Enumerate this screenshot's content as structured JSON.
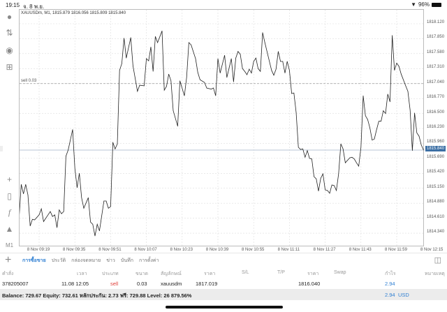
{
  "status": {
    "time": "19:15",
    "date": "จ. 8 พ.ย.",
    "battery": "96%"
  },
  "sidebar": {
    "icons": [
      "account-icon",
      "trade-arrows-icon",
      "chat-icon",
      "new-document-icon",
      "crosshair-icon",
      "candlestick-icon",
      "indicators-icon",
      "objects-icon"
    ],
    "timeframe": "M1"
  },
  "chart_data": {
    "type": "line",
    "symbol_info": "XAUUSDm, M1, 1815.879 1816.056 1815.809 1815.840",
    "y_ticks": [
      "1818.120",
      "1817.850",
      "1817.580",
      "1817.310",
      "1817.040",
      "1816.770",
      "1816.500",
      "1816.230",
      "1815.960",
      "1815.690",
      "1815.420",
      "1815.150",
      "1814.880",
      "1814.610",
      "1814.340"
    ],
    "x_ticks": [
      "8 Nov 09:19",
      "8 Nov 09:35",
      "8 Nov 09:51",
      "8 Nov 10:07",
      "8 Nov 10:23",
      "8 Nov 10:39",
      "8 Nov 10:55",
      "8 Nov 11:11",
      "8 Nov 11:27",
      "8 Nov 11:43",
      "8 Nov 11:59",
      "8 Nov 12:15"
    ],
    "current_price": "1815.840",
    "order_line": {
      "label": "sell 0.03",
      "price": 1817.04
    },
    "grid": true,
    "line_color": "#222222",
    "points": [
      [
        "09:10",
        1814.59
      ],
      [
        "09:11",
        1815.22
      ],
      [
        "09:12",
        1815.05
      ],
      [
        "09:13",
        1815.22
      ],
      [
        "09:14",
        1815.03
      ],
      [
        "09:15",
        1814.47
      ],
      [
        "09:16",
        1814.59
      ],
      [
        "09:17",
        1814.58
      ],
      [
        "09:19",
        1814.67
      ],
      [
        "09:20",
        1814.78
      ],
      [
        "09:21",
        1814.55
      ],
      [
        "09:23",
        1814.67
      ],
      [
        "09:24",
        1814.73
      ],
      [
        "09:25",
        1814.64
      ],
      [
        "09:26",
        1814.67
      ],
      [
        "09:27",
        1814.44
      ],
      [
        "09:28",
        1814.76
      ],
      [
        "09:29",
        1814.69
      ],
      [
        "09:30",
        1814.73
      ],
      [
        "09:31",
        1815.73
      ],
      [
        "09:32",
        1815.84
      ],
      [
        "09:34",
        1816.21
      ],
      [
        "09:35",
        1815.51
      ],
      [
        "09:36",
        1815.16
      ],
      [
        "09:37",
        1815.42
      ],
      [
        "09:38",
        1814.98
      ],
      [
        "09:39",
        1814.79
      ],
      [
        "09:41",
        1814.98
      ],
      [
        "09:42",
        1814.54
      ],
      [
        "09:43",
        1814.5
      ],
      [
        "09:44",
        1814.29
      ],
      [
        "09:45",
        1814.5
      ],
      [
        "09:46",
        1814.38
      ],
      [
        "09:48",
        1814.92
      ],
      [
        "09:49",
        1814.92
      ],
      [
        "09:50",
        1814.79
      ],
      [
        "09:51",
        1814.82
      ],
      [
        "09:52",
        1815.98
      ],
      [
        "09:53",
        1815.86
      ],
      [
        "09:54",
        1815.95
      ],
      [
        "09:55",
        1817.28
      ],
      [
        "09:56",
        1817.4
      ],
      [
        "09:57",
        1817.86
      ],
      [
        "09:58",
        1817.5
      ],
      [
        "10:00",
        1817.87
      ],
      [
        "10:01",
        1817.36
      ],
      [
        "10:03",
        1816.9
      ],
      [
        "10:04",
        1817.01
      ],
      [
        "10:06",
        1817.0
      ],
      [
        "10:07",
        1817.49
      ],
      [
        "10:08",
        1817.45
      ],
      [
        "10:09",
        1817.7
      ],
      [
        "10:10",
        1817.26
      ],
      [
        "10:11",
        1817.89
      ],
      [
        "10:12",
        1817.78
      ],
      [
        "10:14",
        1817.99
      ],
      [
        "10:15",
        1816.92
      ],
      [
        "10:16",
        1816.99
      ],
      [
        "10:17",
        1817.21
      ],
      [
        "10:18",
        1817.09
      ],
      [
        "10:19",
        1816.55
      ],
      [
        "10:21",
        1816.27
      ],
      [
        "10:22",
        1817.09
      ],
      [
        "10:24",
        1816.82
      ],
      [
        "10:25",
        1817.15
      ],
      [
        "10:26",
        1817.78
      ],
      [
        "10:27",
        1817.74
      ],
      [
        "10:29",
        1817.49
      ],
      [
        "10:30",
        1817.24
      ],
      [
        "10:31",
        1817.11
      ],
      [
        "10:33",
        1817.06
      ],
      [
        "10:34",
        1816.96
      ],
      [
        "10:36",
        1816.94
      ],
      [
        "10:37",
        1816.96
      ],
      [
        "10:38",
        1816.82
      ],
      [
        "10:39",
        1817.49
      ],
      [
        "10:40",
        1817.23
      ],
      [
        "10:42",
        1817.55
      ],
      [
        "10:43",
        1817.15
      ],
      [
        "10:45",
        1817.49
      ],
      [
        "10:46",
        1817.07
      ],
      [
        "10:47",
        1817.5
      ],
      [
        "10:48",
        1817.62
      ],
      [
        "10:49",
        1817.57
      ],
      [
        "10:50",
        1817.31
      ],
      [
        "10:51",
        1817.26
      ],
      [
        "10:52",
        1817.2
      ],
      [
        "10:53",
        1817.3
      ],
      [
        "10:54",
        1817.23
      ],
      [
        "10:55",
        1817.44
      ],
      [
        "10:56",
        1817.5
      ],
      [
        "10:57",
        1817.31
      ],
      [
        "10:58",
        1817.26
      ],
      [
        "10:59",
        1817.96
      ],
      [
        "11:00",
        1817.78
      ],
      [
        "11:03",
        1817.28
      ],
      [
        "11:04",
        1817.19
      ],
      [
        "11:05",
        1817.3
      ],
      [
        "11:06",
        1817.62
      ],
      [
        "11:07",
        1817.44
      ],
      [
        "11:08",
        1817.44
      ],
      [
        "11:09",
        1817.23
      ],
      [
        "11:10",
        1817.44
      ],
      [
        "11:11",
        1817.28
      ],
      [
        "11:12",
        1816.86
      ],
      [
        "11:13",
        1816.87
      ],
      [
        "11:14",
        1816.52
      ],
      [
        "11:15",
        1815.89
      ],
      [
        "11:16",
        1815.85
      ],
      [
        "11:17",
        1815.86
      ],
      [
        "11:18",
        1815.71
      ],
      [
        "11:19",
        1815.83
      ],
      [
        "11:20",
        1815.69
      ],
      [
        "11:21",
        1815.68
      ],
      [
        "11:22",
        1815.36
      ],
      [
        "11:23",
        1815.32
      ],
      [
        "11:24",
        1815.1
      ],
      [
        "11:25",
        1815.33
      ],
      [
        "11:26",
        1815.41
      ],
      [
        "11:27",
        1815.12
      ],
      [
        "11:28",
        1815.11
      ],
      [
        "11:29",
        1815.06
      ],
      [
        "11:30",
        1815.21
      ],
      [
        "11:31",
        1815.2
      ],
      [
        "11:32",
        1815.11
      ],
      [
        "11:33",
        1815.41
      ],
      [
        "11:34",
        1815.95
      ],
      [
        "11:35",
        1815.86
      ],
      [
        "11:36",
        1815.61
      ],
      [
        "11:38",
        1815.7
      ],
      [
        "11:39",
        1815.71
      ],
      [
        "11:40",
        1815.68
      ],
      [
        "11:41",
        1815.61
      ],
      [
        "11:42",
        1815.55
      ],
      [
        "11:43",
        1815.89
      ],
      [
        "11:44",
        1816.82
      ],
      [
        "11:45",
        1816.46
      ],
      [
        "11:46",
        1816.39
      ],
      [
        "11:47",
        1816.24
      ],
      [
        "11:48",
        1816.02
      ],
      [
        "11:49",
        1816.04
      ],
      [
        "11:50",
        1816.21
      ],
      [
        "11:51",
        1816.36
      ],
      [
        "11:52",
        1816.36
      ],
      [
        "11:53",
        1816.55
      ],
      [
        "11:54",
        1816.5
      ],
      [
        "11:55",
        1816.85
      ],
      [
        "11:56",
        1816.71
      ],
      [
        "11:57",
        1817.91
      ],
      [
        "11:58",
        1817.28
      ],
      [
        "11:59",
        1817.41
      ],
      [
        "12:00",
        1817.35
      ],
      [
        "12:01",
        1817.21
      ],
      [
        "12:03",
        1817.0
      ],
      [
        "12:04",
        1816.9
      ],
      [
        "12:05",
        1816.56
      ],
      [
        "12:06",
        1815.83
      ],
      [
        "12:07",
        1816.51
      ],
      [
        "12:08",
        1816.15
      ],
      [
        "12:09",
        1816.09
      ],
      [
        "12:10",
        1815.93
      ],
      [
        "12:11",
        1815.84
      ]
    ]
  },
  "bottom": {
    "tabs": [
      "การซื้อขาย",
      "ประวัติ",
      "กล่องจดหมาย",
      "ข่าว",
      "บันทึก",
      "การตั้งค่า"
    ],
    "active_tab": 0,
    "columns": [
      "คำสั่ง",
      "เวลา",
      "ประเภท",
      "ขนาด",
      "สัญลักษณ์",
      "ราคา",
      "S/L",
      "T/P",
      "ราคา",
      "Swap",
      "กำไร",
      "หมายเหตุ"
    ],
    "order": {
      "ticket": "378205007",
      "time": "11.08 12:05",
      "type": "sell",
      "size": "0.03",
      "symbol": "xauusdm",
      "open_price": "1817.019",
      "sl": "",
      "tp": "",
      "price": "1816.040",
      "swap": "",
      "profit": "2.94",
      "comment": ""
    },
    "balance_line": "Balance: 729.67 Equity: 732.61 หลักประกัน: 2.73 ฟรี: 729.88 Level: 26 879.56%",
    "total_profit": "2.94",
    "currency": "USD",
    "colors": {
      "accent": "#2f7fd2",
      "sell": "#e0403a"
    }
  }
}
